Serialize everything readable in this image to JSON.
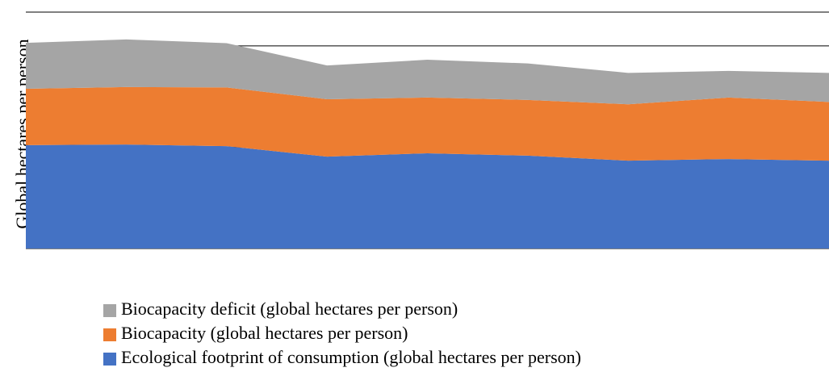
{
  "chart_data": {
    "type": "area",
    "stacked": true,
    "y_label": "Global hectares per person",
    "categories": [
      null,
      null,
      null,
      null,
      null,
      null,
      null,
      null,
      null
    ],
    "ylim": [
      0,
      7
    ],
    "yticks": [
      0,
      1,
      2,
      3,
      4,
      5,
      6,
      7
    ],
    "grid": true,
    "series": [
      {
        "name": "Ecological footprint of consumption (global hectares per person)",
        "color": "#4472c4",
        "values": [
          3.06,
          3.08,
          3.03,
          2.72,
          2.82,
          2.75,
          2.6,
          2.65,
          2.6
        ]
      },
      {
        "name": "Biocapacity (global hectares per person)",
        "color": "#ed7d31",
        "values": [
          1.67,
          1.7,
          1.74,
          1.7,
          1.65,
          1.65,
          1.67,
          1.82,
          1.74
        ]
      },
      {
        "name": "Biocapacity deficit (global hectares per person)",
        "color": "#a5a5a5",
        "values": [
          1.36,
          1.41,
          1.31,
          1.0,
          1.12,
          1.08,
          0.93,
          0.79,
          0.86
        ]
      }
    ]
  }
}
